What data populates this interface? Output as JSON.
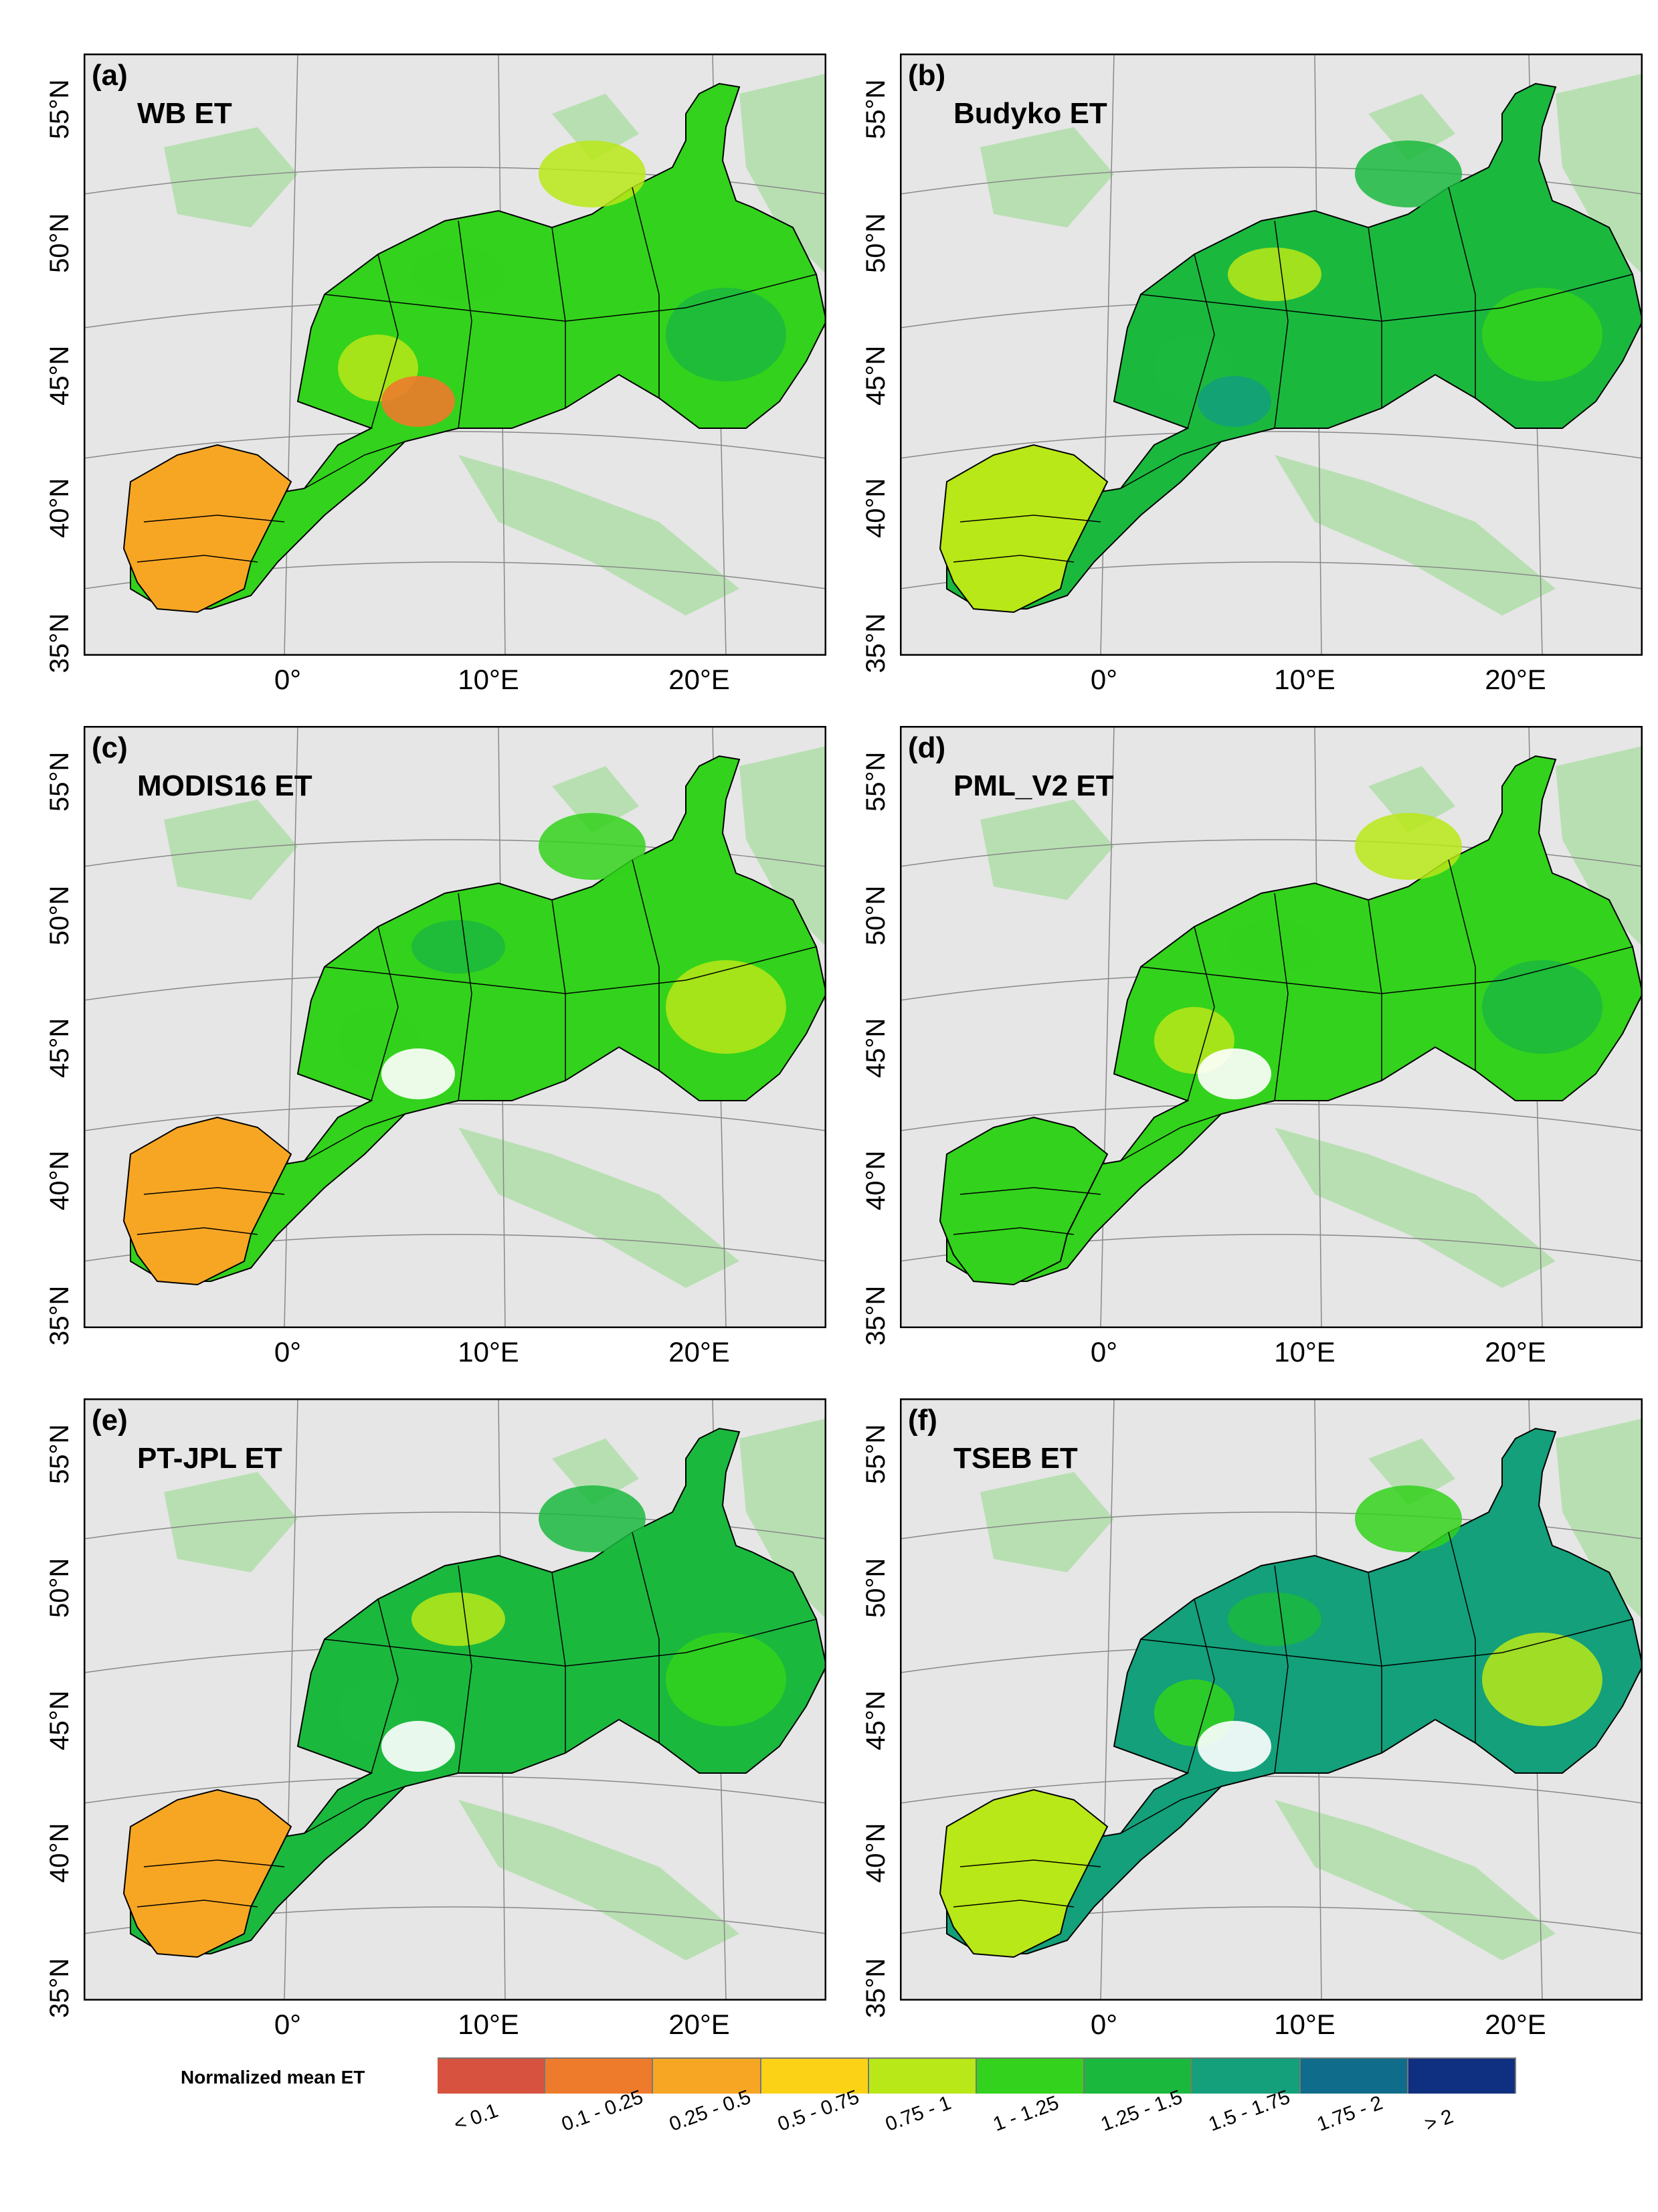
{
  "panels": [
    {
      "letter": "(a)",
      "title": "WB ET"
    },
    {
      "letter": "(b)",
      "title": "Budyko ET"
    },
    {
      "letter": "(c)",
      "title": "MODIS16 ET"
    },
    {
      "letter": "(d)",
      "title": "PML_V2 ET"
    },
    {
      "letter": "(e)",
      "title": "PT-JPL ET"
    },
    {
      "letter": "(f)",
      "title": "TSEB ET"
    }
  ],
  "lat_labels": [
    "55°N",
    "50°N",
    "45°N",
    "40°N",
    "35°N"
  ],
  "lon_labels": [
    "0°",
    "10°E",
    "20°E"
  ],
  "legend": {
    "title": "Normalized mean ET",
    "classes": [
      {
        "label": "< 0.1",
        "color": "#d7533f"
      },
      {
        "label": "0.1 - 0.25",
        "color": "#ee7a2c"
      },
      {
        "label": "0.25 - 0.5",
        "color": "#f7a624"
      },
      {
        "label": "0.5 - 0.75",
        "color": "#fcd217"
      },
      {
        "label": "0.75 - 1",
        "color": "#b8e817"
      },
      {
        "label": "1 - 1.25",
        "color": "#33d21c"
      },
      {
        "label": "1.25 - 1.5",
        "color": "#1bb83e"
      },
      {
        "label": "1.5 - 1.75",
        "color": "#13a07a"
      },
      {
        "label": "1.75 - 2",
        "color": "#0f6c8a"
      },
      {
        "label": "> 2",
        "color": "#0f2f80"
      }
    ]
  },
  "colors": {
    "background_land": "#e6e6e6",
    "context_green": "#a8dca0",
    "border": "#000000",
    "graticule": "#888888"
  }
}
